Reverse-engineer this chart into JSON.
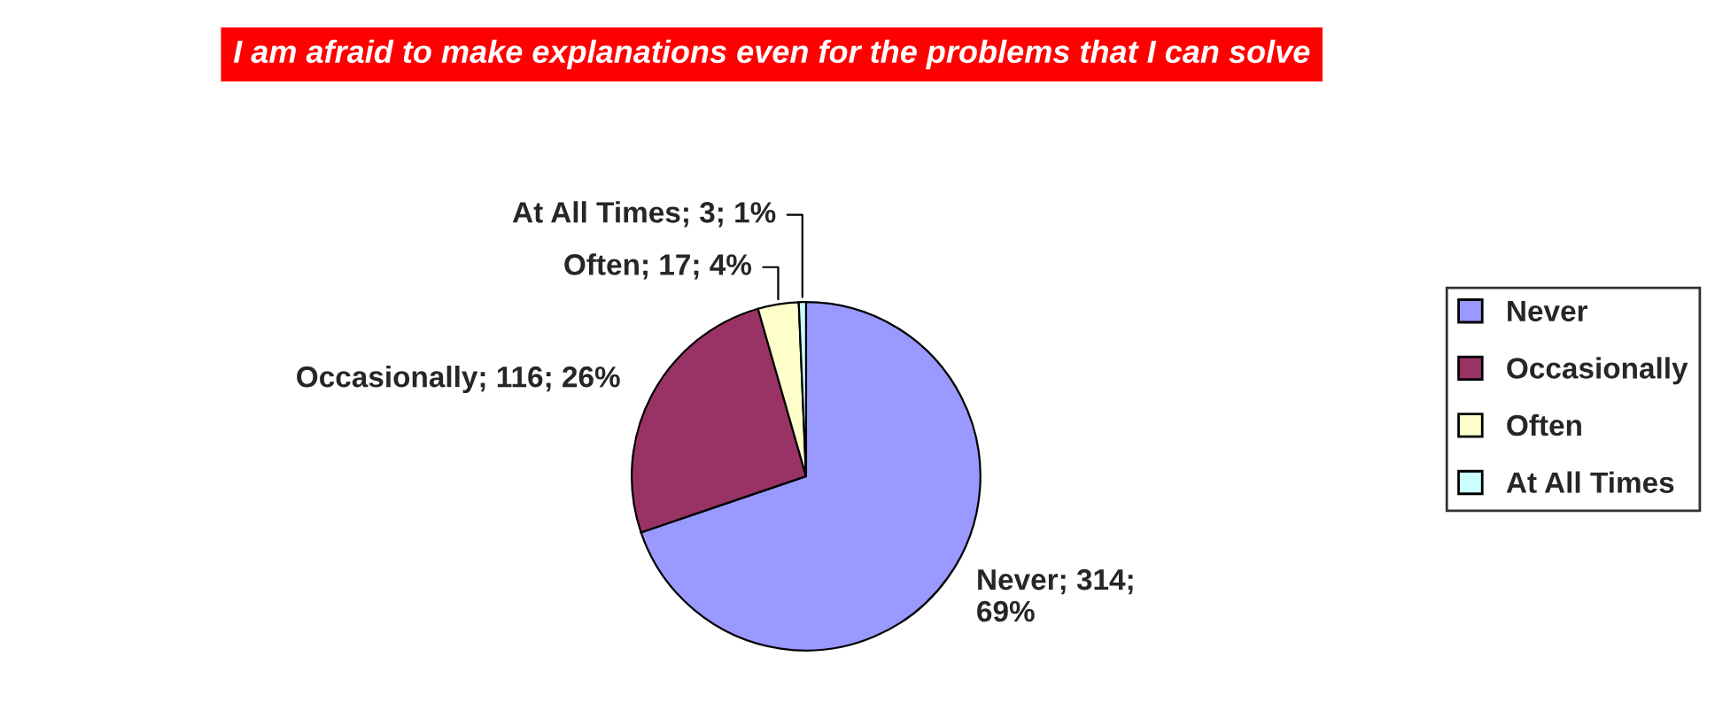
{
  "chart_data": {
    "type": "pie",
    "title": "I am afraid to make explanations even for the problems that I can solve",
    "categories": [
      "Never",
      "Occasionally",
      "Often",
      "At All Times"
    ],
    "values": [
      314,
      116,
      17,
      3
    ],
    "colors": [
      "#9999ff",
      "#993366",
      "#ffffcc",
      "#ccffff"
    ],
    "value_labels": [
      "Never; 314;\n69%",
      "Occasionally; 116; 26%",
      "Often; 17; 4%",
      "At All Times; 3; 1%"
    ],
    "legend": "right"
  }
}
